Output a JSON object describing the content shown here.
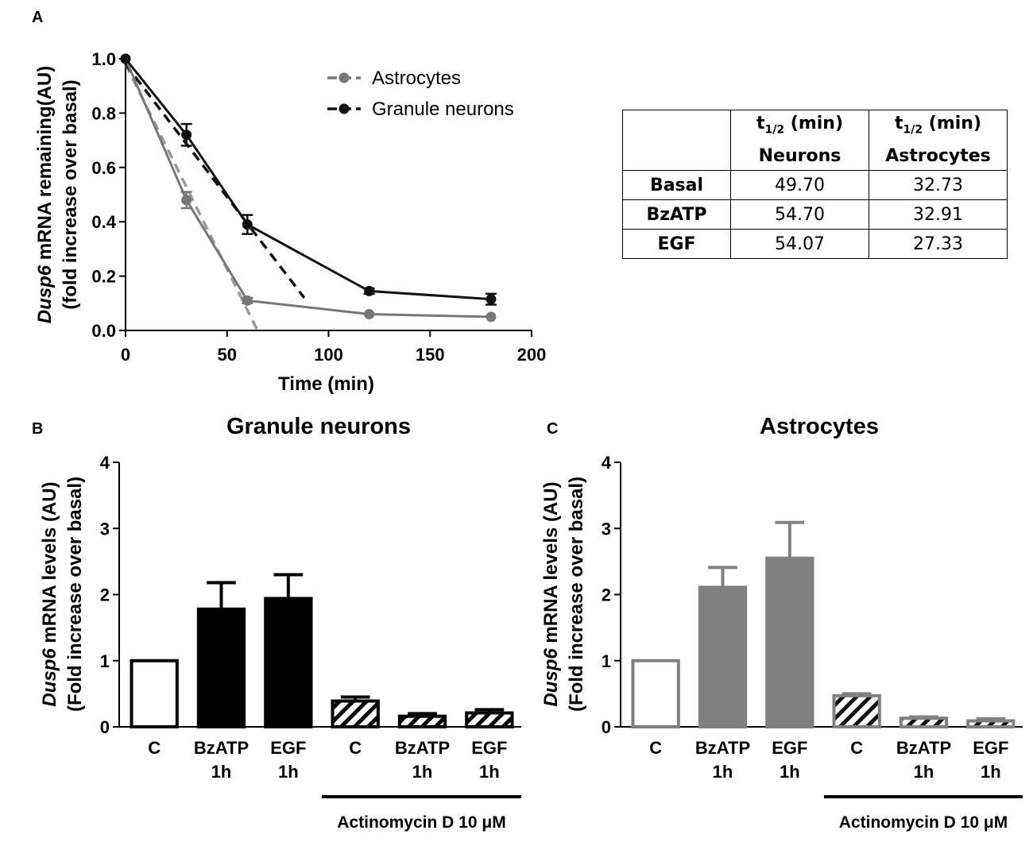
{
  "panels": {
    "a": {
      "label": "A",
      "table": {
        "col1_line1": "t",
        "col1_sub": "1/2",
        "col1_line1_suffix": " (min)",
        "col1_line2": "Neurons",
        "col2_line1": "t",
        "col2_sub": "1/2",
        "col2_line1_suffix": " (min)",
        "col2_line2": "Astrocytes",
        "rows": [
          {
            "name": "Basal",
            "neurons": "49.70",
            "astrocytes": "32.73"
          },
          {
            "name": "BzATP",
            "neurons": "54.70",
            "astrocytes": "32.91"
          },
          {
            "name": "EGF",
            "neurons": "54.07",
            "astrocytes": "27.33"
          }
        ]
      }
    },
    "b": {
      "label": "B"
    },
    "c": {
      "label": "C"
    }
  },
  "chart_data": [
    {
      "id": "A",
      "type": "line",
      "xlabel": "Time (min)",
      "ylabel_italic": "Dusp6",
      "ylabel_rest": " mRNA remaining(AU)",
      "ylabel2": "(fold increase over basal)",
      "xlim": [
        0,
        200
      ],
      "ylim": [
        0,
        1.0
      ],
      "xticks": [
        0,
        50,
        100,
        150,
        200
      ],
      "yticks": [
        "0.0",
        "0.2",
        "0.4",
        "0.6",
        "0.8",
        "1.0"
      ],
      "legend_position": "top-center",
      "series": [
        {
          "name": "Astrocytes",
          "color": "#777777",
          "x": [
            0,
            30,
            60,
            120,
            180
          ],
          "y": [
            1.0,
            0.48,
            0.11,
            0.06,
            0.05
          ],
          "err": [
            0,
            0.03,
            0.01,
            0.005,
            0.005
          ],
          "fit": {
            "x": [
              0,
              65
            ],
            "y": [
              0.98,
              0.0
            ]
          }
        },
        {
          "name": "Granule neurons",
          "color": "#111111",
          "x": [
            0,
            30,
            60,
            120,
            180
          ],
          "y": [
            1.0,
            0.72,
            0.39,
            0.145,
            0.115
          ],
          "err": [
            0,
            0.04,
            0.035,
            0.01,
            0.02
          ],
          "fit": {
            "x": [
              0,
              88
            ],
            "y": [
              0.98,
              0.12
            ]
          }
        }
      ]
    },
    {
      "id": "B",
      "type": "bar",
      "title": "Granule neurons",
      "ylabel_italic": "Dusp6",
      "ylabel_rest": " mRNA levels (AU)",
      "ylabel2": "(Fold increase over basal)",
      "ylim": [
        0,
        4
      ],
      "yticks": [
        "0",
        "1",
        "2",
        "3",
        "4"
      ],
      "color": "#000000",
      "categories": [
        {
          "line1": "C",
          "line2": "",
          "value": 1.0,
          "err": 0,
          "fill": "open"
        },
        {
          "line1": "BzATP",
          "line2": "1h",
          "value": 1.78,
          "err": 0.4,
          "fill": "solid"
        },
        {
          "line1": "EGF",
          "line2": "1h",
          "value": 1.94,
          "err": 0.36,
          "fill": "solid"
        },
        {
          "line1": "C",
          "line2": "",
          "value": 0.39,
          "err": 0.06,
          "fill": "hatched"
        },
        {
          "line1": "BzATP",
          "line2": "1h",
          "value": 0.16,
          "err": 0.04,
          "fill": "hatched"
        },
        {
          "line1": "EGF",
          "line2": "1h",
          "value": 0.21,
          "err": 0.05,
          "fill": "hatched"
        }
      ],
      "bracket_label": "Actinomycin D 10 μM"
    },
    {
      "id": "C",
      "type": "bar",
      "title": "Astrocytes",
      "ylabel_italic": "Dusp6",
      "ylabel_rest": " mRNA levels (AU)",
      "ylabel2": "(Fold increase over basal)",
      "ylim": [
        0,
        4
      ],
      "yticks": [
        "0",
        "1",
        "2",
        "3",
        "4"
      ],
      "color": "#808080",
      "categories": [
        {
          "line1": "C",
          "line2": "",
          "value": 1.0,
          "err": 0,
          "fill": "open"
        },
        {
          "line1": "BzATP",
          "line2": "1h",
          "value": 2.11,
          "err": 0.3,
          "fill": "solid"
        },
        {
          "line1": "EGF",
          "line2": "1h",
          "value": 2.55,
          "err": 0.54,
          "fill": "solid"
        },
        {
          "line1": "C",
          "line2": "",
          "value": 0.47,
          "err": 0.03,
          "fill": "hatched"
        },
        {
          "line1": "BzATP",
          "line2": "1h",
          "value": 0.13,
          "err": 0.02,
          "fill": "hatched"
        },
        {
          "line1": "EGF",
          "line2": "1h",
          "value": 0.09,
          "err": 0.03,
          "fill": "hatched"
        }
      ],
      "bracket_label": "Actinomycin D 10 μM"
    }
  ]
}
